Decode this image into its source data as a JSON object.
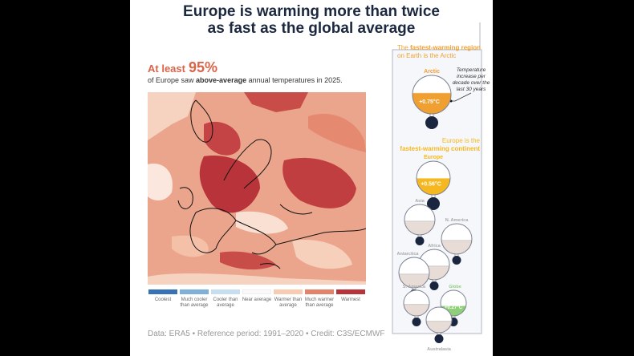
{
  "header": {
    "title_line1": "Europe is warming more than twice",
    "title_line2": "as fast as the global average"
  },
  "headline": {
    "prefix": "At least",
    "value": "95%",
    "sub_before": "of Europe saw ",
    "sub_bold": "above-average",
    "sub_after": " annual temperatures in 2025."
  },
  "legend": [
    {
      "label": "Coolest",
      "color": "#3a72b8"
    },
    {
      "label": "Much cooler than average",
      "color": "#7fb0da"
    },
    {
      "label": "Cooler than average",
      "color": "#c6def0"
    },
    {
      "label": "Near average",
      "color": "#f7f9fb"
    },
    {
      "label": "Warmer than average",
      "color": "#f8cbb3"
    },
    {
      "label": "Much warmer than average",
      "color": "#e2836a"
    },
    {
      "label": "Warmest",
      "color": "#b8343a"
    }
  ],
  "footer": "Data: ERA5 • Reference period: 1991–2020 • Credit: C3S/ECMWF",
  "arctic_note": {
    "before": "The ",
    "bold": "fastest-warming region",
    "line2": "on Earth is the Arctic",
    "color": "#f0a030"
  },
  "annotation": [
    "Temperature",
    "increase per",
    "decade over the",
    "last 30 years"
  ],
  "europe_note": {
    "line1": "Europe is the",
    "line2": "fastest-warming continent",
    "color": "#f5b820"
  },
  "chart_data": {
    "type": "thermometer-bulbs",
    "unit": "°C per decade",
    "series": [
      {
        "name": "Arctic",
        "value_label": "+0.75°C",
        "color": "#f0a030"
      },
      {
        "name": "Europe",
        "value_label": "+0.56°C",
        "color": "#f5b820"
      },
      {
        "name": "Asia"
      },
      {
        "name": "N. America"
      },
      {
        "name": "Africa"
      },
      {
        "name": "Antarctica"
      },
      {
        "name": "S. America"
      },
      {
        "name": "Globe",
        "value_label": "+0.27°C",
        "color": "#8fcf7a"
      },
      {
        "name": "Australasia"
      }
    ]
  }
}
